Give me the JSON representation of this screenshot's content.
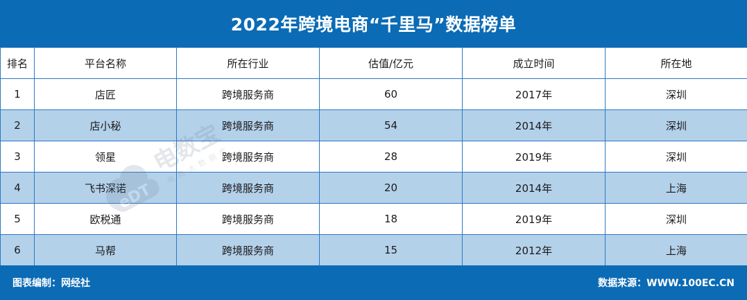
{
  "title": "2022年跨境电商“千里马”数据榜单",
  "table": {
    "headers": [
      "排名",
      "平台名称",
      "所在行业",
      "估值/亿元",
      "成立时间",
      "所在地"
    ],
    "rows": [
      [
        "1",
        "店匠",
        "跨境服务商",
        "60",
        "2017年",
        "深圳"
      ],
      [
        "2",
        "店小秘",
        "跨境服务商",
        "54",
        "2014年",
        "深圳"
      ],
      [
        "3",
        "领星",
        "跨境服务商",
        "28",
        "2019年",
        "深圳"
      ],
      [
        "4",
        "飞书深诺",
        "跨境服务商",
        "20",
        "2014年",
        "上海"
      ],
      [
        "5",
        "欧税通",
        "跨境服务商",
        "18",
        "2019年",
        "深圳"
      ],
      [
        "6",
        "马帮",
        "跨境服务商",
        "15",
        "2012年",
        "上海"
      ]
    ]
  },
  "footer": {
    "left": "图表编制：网经社",
    "right": "数据来源：WWW.100EC.CN"
  },
  "watermark": {
    "brand": "电数宝",
    "tagline": "电商大数据库",
    "logo": "eDT",
    "color": "#6a7f95"
  },
  "colors": {
    "header_blue": "#0b6bb5",
    "row_alt": "#b4d1ea",
    "border": "#2a78c4"
  }
}
